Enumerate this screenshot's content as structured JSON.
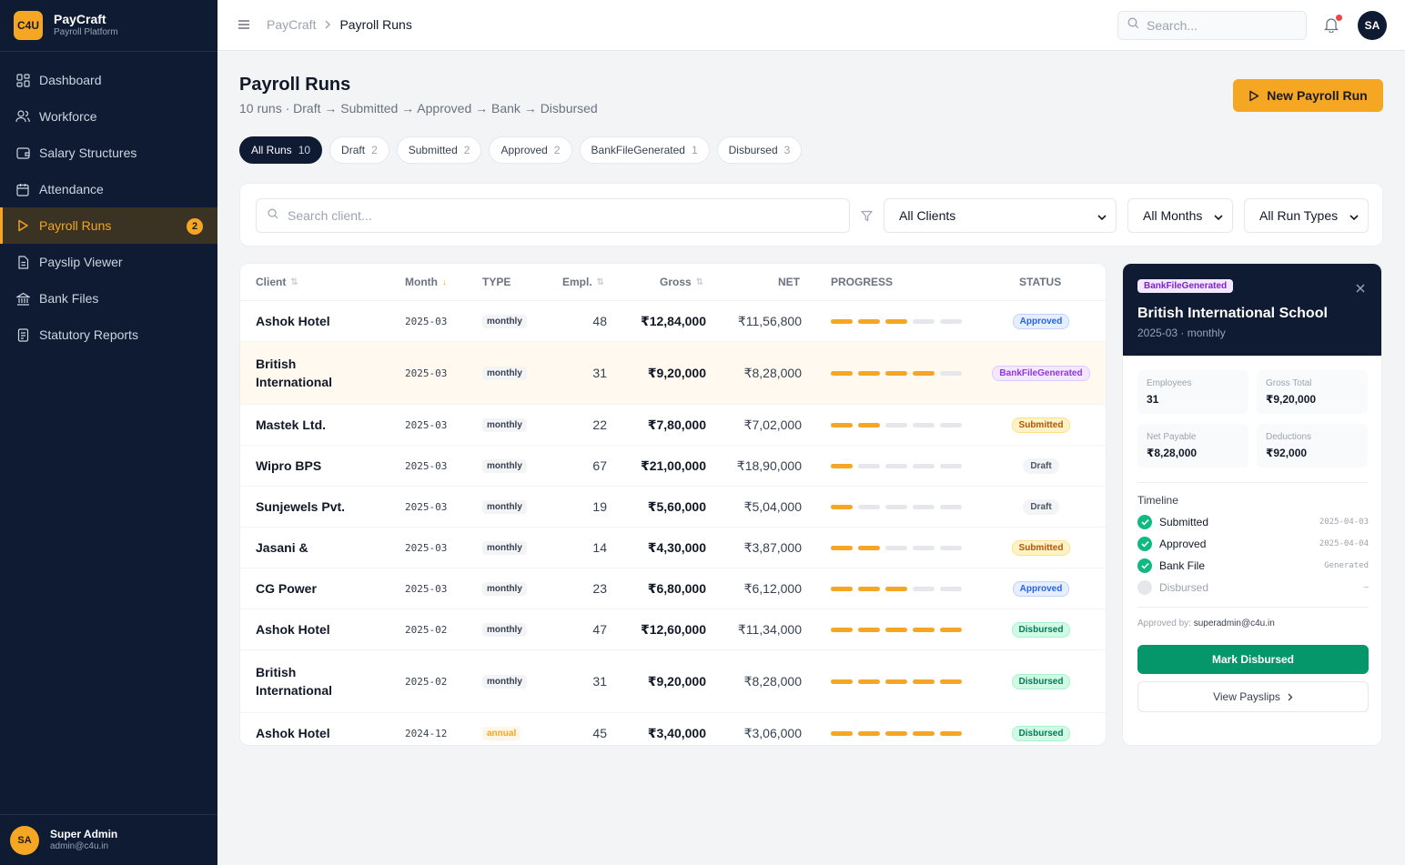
{
  "brand": {
    "logo": "C4U",
    "name": "PayCraft",
    "subtitle": "Payroll Platform"
  },
  "sidebar": {
    "items": [
      {
        "label": "Dashboard",
        "icon": "dashboard-grid-icon"
      },
      {
        "label": "Workforce",
        "icon": "users-icon"
      },
      {
        "label": "Salary Structures",
        "icon": "wallet-icon"
      },
      {
        "label": "Attendance",
        "icon": "calendar-icon"
      },
      {
        "label": "Payroll Runs",
        "icon": "play-icon",
        "active": true,
        "badge": "2"
      },
      {
        "label": "Payslip Viewer",
        "icon": "file-icon"
      },
      {
        "label": "Bank Files",
        "icon": "bank-icon"
      },
      {
        "label": "Statutory Reports",
        "icon": "report-icon"
      }
    ],
    "user": {
      "initials": "SA",
      "name": "Super Admin",
      "email": "admin@c4u.in"
    }
  },
  "header": {
    "breadcrumb": {
      "root": "PayCraft",
      "current": "Payroll Runs"
    },
    "search_placeholder": "Search...",
    "avatar_initials": "SA"
  },
  "page": {
    "title": "Payroll Runs",
    "subtitle": "10 runs · Draft → Submitted → Approved → Bank → Disbursed",
    "new_button": "New Payroll Run"
  },
  "tabs": [
    {
      "label": "All Runs",
      "count": "10",
      "active": true
    },
    {
      "label": "Draft",
      "count": "2"
    },
    {
      "label": "Submitted",
      "count": "2"
    },
    {
      "label": "Approved",
      "count": "2"
    },
    {
      "label": "BankFileGenerated",
      "count": "1"
    },
    {
      "label": "Disbursed",
      "count": "3"
    }
  ],
  "filters": {
    "search_placeholder": "Search client...",
    "client_select": "All Clients",
    "month_select": "All Months",
    "type_select": "All Run Types"
  },
  "table": {
    "headers": {
      "client": "Client",
      "month": "Month",
      "type": "TYPE",
      "employees": "Empl.",
      "gross": "Gross",
      "net": "NET",
      "progress": "PROGRESS",
      "status": "STATUS"
    },
    "progress_steps": 5,
    "rows": [
      {
        "client": "Ashok Hotel",
        "month": "2025-03",
        "type": "monthly",
        "employees": "48",
        "gross": "₹12,84,000",
        "net": "₹11,56,800",
        "progress": 3,
        "status": "Approved"
      },
      {
        "client": "British International",
        "month": "2025-03",
        "type": "monthly",
        "employees": "31",
        "gross": "₹9,20,000",
        "net": "₹8,28,000",
        "progress": 4,
        "status": "BankFileGenerated",
        "selected": true
      },
      {
        "client": "Mastek Ltd.",
        "month": "2025-03",
        "type": "monthly",
        "employees": "22",
        "gross": "₹7,80,000",
        "net": "₹7,02,000",
        "progress": 2,
        "status": "Submitted"
      },
      {
        "client": "Wipro BPS",
        "month": "2025-03",
        "type": "monthly",
        "employees": "67",
        "gross": "₹21,00,000",
        "net": "₹18,90,000",
        "progress": 1,
        "status": "Draft"
      },
      {
        "client": "Sunjewels Pvt.",
        "month": "2025-03",
        "type": "monthly",
        "employees": "19",
        "gross": "₹5,60,000",
        "net": "₹5,04,000",
        "progress": 1,
        "status": "Draft"
      },
      {
        "client": "Jasani &",
        "month": "2025-03",
        "type": "monthly",
        "employees": "14",
        "gross": "₹4,30,000",
        "net": "₹3,87,000",
        "progress": 2,
        "status": "Submitted"
      },
      {
        "client": "CG Power",
        "month": "2025-03",
        "type": "monthly",
        "employees": "23",
        "gross": "₹6,80,000",
        "net": "₹6,12,000",
        "progress": 3,
        "status": "Approved"
      },
      {
        "client": "Ashok Hotel",
        "month": "2025-02",
        "type": "monthly",
        "employees": "47",
        "gross": "₹12,60,000",
        "net": "₹11,34,000",
        "progress": 5,
        "status": "Disbursed"
      },
      {
        "client": "British International",
        "month": "2025-02",
        "type": "monthly",
        "employees": "31",
        "gross": "₹9,20,000",
        "net": "₹8,28,000",
        "progress": 5,
        "status": "Disbursed"
      },
      {
        "client": "Ashok Hotel",
        "month": "2024-12",
        "type": "annual",
        "employees": "45",
        "gross": "₹3,40,000",
        "net": "₹3,06,000",
        "progress": 5,
        "status": "Disbursed"
      }
    ]
  },
  "detail": {
    "badge": "BankFileGenerated",
    "title": "British International School",
    "subtitle": "2025-03 · monthly",
    "stats": [
      {
        "label": "Employees",
        "value": "31"
      },
      {
        "label": "Gross Total",
        "value": "₹9,20,000"
      },
      {
        "label": "Net Payable",
        "value": "₹8,28,000"
      },
      {
        "label": "Deductions",
        "value": "₹92,000"
      }
    ],
    "timeline_title": "Timeline",
    "timeline": [
      {
        "label": "Submitted",
        "date": "2025-04-03",
        "done": true
      },
      {
        "label": "Approved",
        "date": "2025-04-04",
        "done": true
      },
      {
        "label": "Bank File",
        "date": "Generated",
        "done": true
      },
      {
        "label": "Disbursed",
        "date": "—",
        "done": false
      }
    ],
    "approved_by_label": "Approved by:",
    "approved_by": "superadmin@c4u.in",
    "mark_button": "Mark Disbursed",
    "view_button": "View Payslips"
  },
  "colors": {
    "accent": "#f5a623",
    "sidebar_bg": "#0f1b33",
    "success": "#059669"
  }
}
